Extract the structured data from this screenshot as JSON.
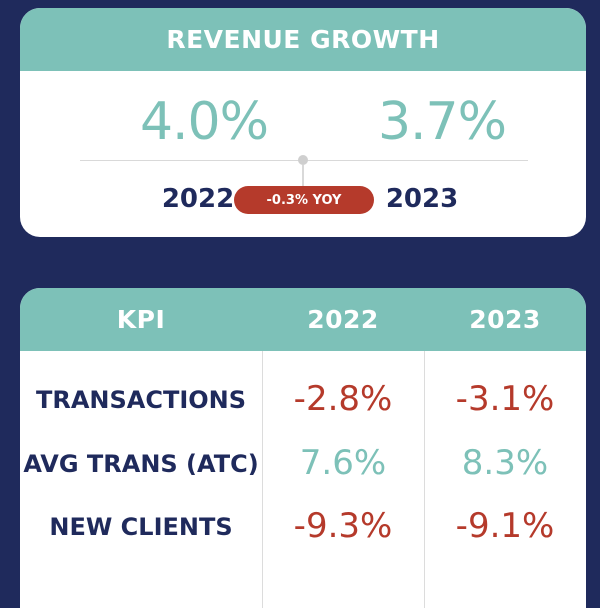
{
  "colors": {
    "background": "#1f2a5c",
    "accent_teal": "#7dc1b8",
    "negative_red": "#b53a2b",
    "text_navy": "#1f2a5c"
  },
  "revenue_growth": {
    "title": "REVENUE GROWTH",
    "value_2022": "4.0%",
    "value_2023": "3.7%",
    "year_2022": "2022",
    "year_2023": "2023",
    "yoy_label": "-0.3% YOY"
  },
  "kpi_table": {
    "headers": [
      "KPI",
      "2022",
      "2023"
    ],
    "rows": [
      {
        "label": "TRANSACTIONS",
        "v2022": "-2.8%",
        "v2023": "-3.1%"
      },
      {
        "label": "AVG TRANS (ATC)",
        "v2022": "7.6%",
        "v2023": "8.3%"
      },
      {
        "label": "NEW CLIENTS",
        "v2022": "-9.3%",
        "v2023": "-9.1%"
      }
    ]
  }
}
